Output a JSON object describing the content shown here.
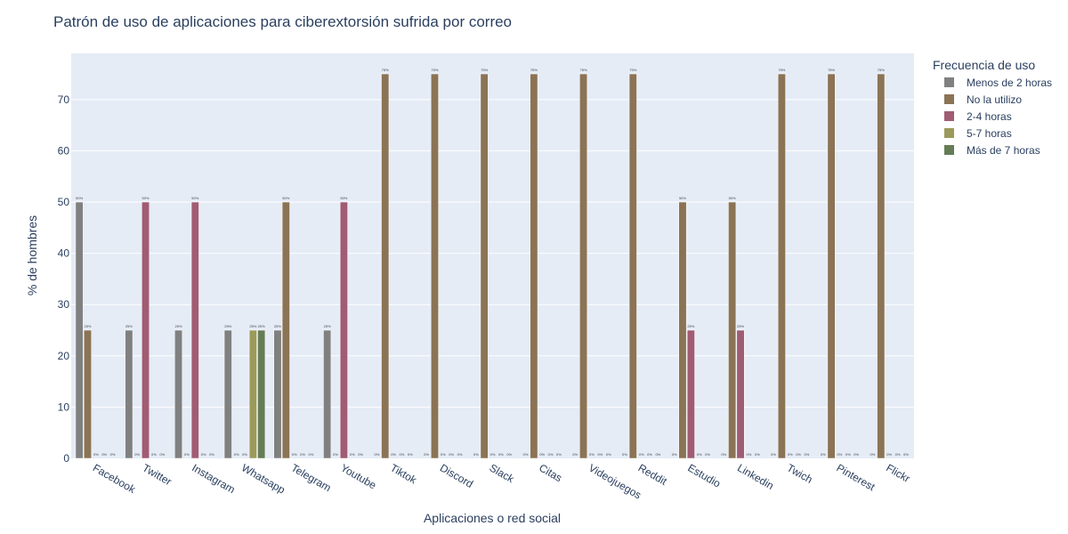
{
  "chart_data": {
    "type": "bar",
    "title": "Patrón de uso de aplicaciones para ciberextorsión sufrida por correo",
    "xlabel": "Aplicaciones o red social",
    "ylabel": "% de hombres",
    "ylim": [
      0,
      79
    ],
    "yticks": [
      0,
      10,
      20,
      30,
      40,
      50,
      60,
      70
    ],
    "grid": true,
    "legend_title": "Frecuencia de uso",
    "legend_position": "right",
    "categories": [
      "Facebook",
      "Twitter",
      "Instagram",
      "Whatsapp",
      "Telegram",
      "Youtube",
      "Tiktok",
      "Discord",
      "Slack",
      "Citas",
      "Videojuegos",
      "Reddit",
      "Estudio",
      "Linkedin",
      "Twich",
      "Pinterest",
      "Flickr"
    ],
    "series": [
      {
        "name": "Menos de 2 horas",
        "color": "#808080",
        "values": [
          50,
          25,
          25,
          25,
          25,
          25,
          0,
          0,
          0,
          0,
          0,
          0,
          0,
          0,
          0,
          0,
          0
        ],
        "labels": [
          "50%",
          "25%",
          "25%",
          "25%",
          "25%",
          "25%",
          "0%",
          "0%",
          "0%",
          "0%",
          "0%",
          "0%",
          "0%",
          "0%",
          "0%",
          "0%",
          "0%"
        ]
      },
      {
        "name": "No la utilizo",
        "color": "#8b7355",
        "values": [
          25,
          0,
          0,
          0,
          50,
          0,
          75,
          75,
          75,
          75,
          75,
          75,
          50,
          50,
          75,
          75,
          75
        ],
        "labels": [
          "25%",
          "0%",
          "0%",
          "0%",
          "50%",
          "0%",
          "75%",
          "75%",
          "75%",
          "75%",
          "75%",
          "75%",
          "50%",
          "50%",
          "75%",
          "75%",
          "75%"
        ]
      },
      {
        "name": "2-4 horas",
        "color": "#a05c72",
        "values": [
          0,
          50,
          50,
          0,
          0,
          50,
          0,
          0,
          0,
          0,
          0,
          0,
          25,
          25,
          0,
          0,
          0
        ],
        "labels": [
          "0%",
          "50%",
          "50%",
          "0%",
          "0%",
          "50%",
          "0%",
          "0%",
          "0%",
          "0%",
          "0%",
          "0%",
          "25%",
          "25%",
          "0%",
          "0%",
          "0%"
        ]
      },
      {
        "name": "5-7 horas",
        "color": "#9c9a5a",
        "values": [
          0,
          0,
          0,
          25,
          0,
          0,
          0,
          0,
          0,
          0,
          0,
          0,
          0,
          0,
          0,
          0,
          0
        ],
        "labels": [
          "0%",
          "0%",
          "0%",
          "25%",
          "0%",
          "0%",
          "0%",
          "0%",
          "0%",
          "0%",
          "0%",
          "0%",
          "0%",
          "0%",
          "0%",
          "0%",
          "0%"
        ]
      },
      {
        "name": "Más de 7 horas",
        "color": "#647d56",
        "values": [
          0,
          0,
          0,
          25,
          0,
          0,
          0,
          0,
          0,
          0,
          0,
          0,
          0,
          0,
          0,
          0,
          0
        ],
        "labels": [
          "0%",
          "0%",
          "0%",
          "25%",
          "0%",
          "0%",
          "0%",
          "0%",
          "0%",
          "0%",
          "0%",
          "0%",
          "0%",
          "0%",
          "0%",
          "0%",
          "0%"
        ]
      }
    ]
  }
}
